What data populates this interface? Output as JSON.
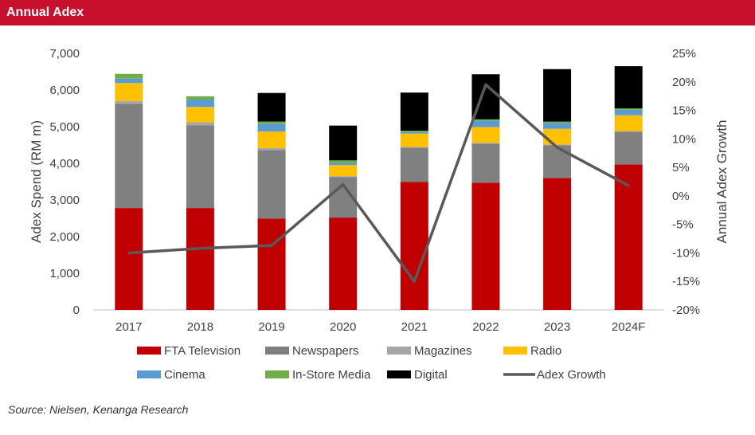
{
  "header": {
    "title": "Annual Adex"
  },
  "source": "Source: Nielsen, Kenanga Research",
  "chart_data": {
    "type": "bar",
    "title": "",
    "xlabel": "",
    "ylabel": "Adex Spend (RM m)",
    "y2label": "Annual Adex Growth",
    "ylim": [
      0,
      7000
    ],
    "y2lim": [
      -0.2,
      0.25
    ],
    "yticks": [
      "7,000",
      "6,000",
      "5,000",
      "4,000",
      "3,000",
      "2,000",
      "1,000",
      "0"
    ],
    "y2ticks": [
      "25%",
      "20%",
      "15%",
      "10%",
      "5%",
      "0%",
      "-5%",
      "-10%",
      "-15%",
      "-20%"
    ],
    "categories": [
      "2017",
      "2018",
      "2019",
      "2020",
      "2021",
      "2022",
      "2023",
      "2024F"
    ],
    "series": [
      {
        "name": "FTA Television",
        "color": "#c00000",
        "values": [
          2780,
          2780,
          2490,
          2520,
          3490,
          3470,
          3600,
          3970
        ]
      },
      {
        "name": "Newspapers",
        "color": "#808080",
        "values": [
          2840,
          2260,
          1870,
          1100,
          940,
          1070,
          890,
          890
        ]
      },
      {
        "name": "Magazines",
        "color": "#a6a6a6",
        "values": [
          80,
          80,
          60,
          30,
          20,
          20,
          20,
          20
        ]
      },
      {
        "name": "Radio",
        "color": "#ffc000",
        "values": [
          490,
          420,
          450,
          300,
          360,
          430,
          430,
          430
        ]
      },
      {
        "name": "Cinema",
        "color": "#5b9bd5",
        "values": [
          120,
          200,
          210,
          60,
          40,
          170,
          160,
          150
        ]
      },
      {
        "name": "In-Store Media",
        "color": "#70ad47",
        "values": [
          130,
          90,
          60,
          70,
          40,
          40,
          40,
          40
        ]
      },
      {
        "name": "Digital",
        "color": "#000000",
        "values": [
          0,
          0,
          780,
          950,
          1040,
          1230,
          1430,
          1150
        ]
      }
    ],
    "line": {
      "name": "Adex Growth",
      "color": "#595959",
      "values": [
        -0.1,
        -0.092,
        -0.087,
        0.02,
        -0.15,
        0.195,
        0.085,
        0.018
      ]
    },
    "legend_placement": "bottom",
    "grid": false
  }
}
